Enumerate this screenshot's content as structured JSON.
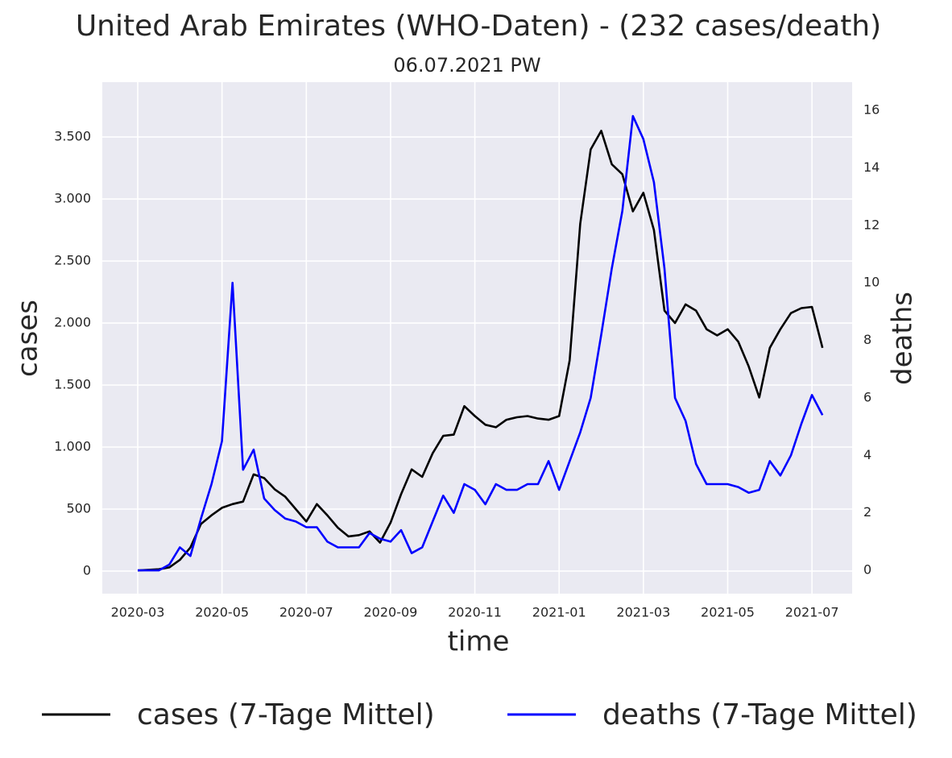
{
  "chart_data": {
    "type": "line",
    "title": "United Arab Emirates (WHO-Daten) - (232 cases/death)",
    "subtitle": "06.07.2021 PW",
    "xlabel": "time",
    "ylabel": "cases",
    "y2label": "deaths",
    "categories": [
      "2020-03",
      null,
      null,
      null,
      null,
      null,
      null,
      null,
      "2020-05",
      null,
      null,
      null,
      null,
      null,
      null,
      null,
      "2020-07",
      null,
      null,
      null,
      null,
      null,
      null,
      null,
      "2020-09",
      null,
      null,
      null,
      null,
      null,
      null,
      null,
      "2020-11",
      null,
      null,
      null,
      null,
      null,
      null,
      null,
      "2021-01",
      null,
      null,
      null,
      null,
      null,
      null,
      null,
      "2021-03",
      null,
      null,
      null,
      null,
      null,
      null,
      null,
      "2021-05",
      null,
      null,
      null,
      null,
      null,
      null,
      null,
      "2021-07",
      null
    ],
    "series": [
      {
        "name": "cases (7-Tage Mittel)",
        "color": "#000000",
        "axis": "y",
        "values": [
          5,
          10,
          15,
          30,
          90,
          190,
          380,
          450,
          510,
          540,
          560,
          780,
          750,
          660,
          600,
          500,
          400,
          540,
          450,
          350,
          280,
          290,
          320,
          230,
          390,
          620,
          820,
          760,
          950,
          1090,
          1100,
          1330,
          1250,
          1180,
          1160,
          1220,
          1240,
          1250,
          1230,
          1220,
          1250,
          1700,
          2800,
          3400,
          3550,
          3280,
          3200,
          2900,
          3050,
          2750,
          2100,
          2000,
          2150,
          2100,
          1950,
          1900,
          1950,
          1850,
          1650,
          1400,
          1800,
          1950,
          2080,
          2120,
          2130,
          1800
        ]
      },
      {
        "name": "deaths (7-Tage Mittel)",
        "color": "#0000ff",
        "axis": "y2",
        "values": [
          0,
          0,
          0,
          0.2,
          0.8,
          0.5,
          1.8,
          3.0,
          4.5,
          10,
          3.5,
          4.2,
          2.5,
          2.1,
          1.8,
          1.7,
          1.5,
          1.5,
          1.0,
          0.8,
          0.8,
          0.8,
          1.3,
          1.1,
          1.0,
          1.4,
          0.6,
          0.8,
          1.7,
          2.6,
          2.0,
          3.0,
          2.8,
          2.3,
          3.0,
          2.8,
          2.8,
          3.0,
          3.0,
          3.8,
          2.8,
          3.8,
          4.8,
          6.0,
          8.2,
          10.5,
          12.5,
          15.8,
          15.0,
          13.5,
          10.5,
          6.0,
          5.2,
          3.7,
          3.0,
          3.0,
          3.0,
          2.9,
          2.7,
          2.8,
          3.8,
          3.3,
          4.0,
          5.1,
          6.1,
          5.4
        ]
      }
    ],
    "ylim": [
      -182,
      3942
    ],
    "yticks": [
      0,
      500,
      {
        "value": 1000,
        "label": "1.000"
      },
      {
        "value": 1500,
        "label": "1.500"
      },
      {
        "value": 2000,
        "label": "2.000"
      },
      {
        "value": 2500,
        "label": "2.500"
      },
      {
        "value": 3000,
        "label": "3.000"
      },
      {
        "value": 3500,
        "label": "3.500"
      }
    ],
    "y2lim": [
      -0.81,
      16.98
    ],
    "y2ticks": [
      0,
      2,
      4,
      6,
      8,
      10,
      12,
      14,
      16
    ],
    "y2label_color": "#0000ff",
    "grid": true,
    "legend": "bottom"
  }
}
